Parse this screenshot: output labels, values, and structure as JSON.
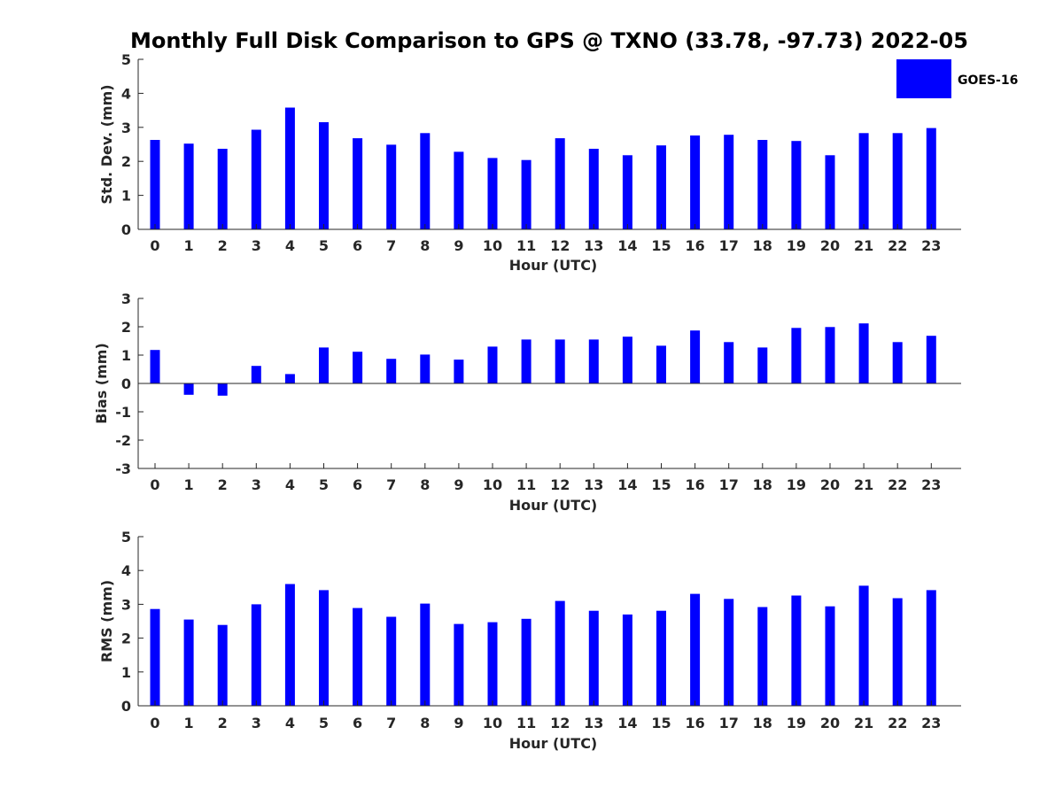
{
  "title": "Monthly Full Disk Comparison to GPS @ TXNO (33.78, -97.73) 2022-05",
  "legend": {
    "label": "GOES-16",
    "color": "#0000ff"
  },
  "chart_data": [
    {
      "type": "bar",
      "series": [
        {
          "name": "GOES-16",
          "values": [
            2.63,
            2.52,
            2.37,
            2.93,
            3.58,
            3.15,
            2.68,
            2.49,
            2.83,
            2.28,
            2.1,
            2.04,
            2.68,
            2.37,
            2.18,
            2.47,
            2.76,
            2.78,
            2.63,
            2.6,
            2.18,
            2.83,
            2.83,
            2.98
          ]
        }
      ],
      "categories": [
        "0",
        "1",
        "2",
        "3",
        "4",
        "5",
        "6",
        "7",
        "8",
        "9",
        "10",
        "11",
        "12",
        "13",
        "14",
        "15",
        "16",
        "17",
        "18",
        "19",
        "20",
        "21",
        "22",
        "23"
      ],
      "xlabel": "Hour (UTC)",
      "ylabel": "Std. Dev. (mm)",
      "ylim": [
        0,
        5
      ],
      "yticks": [
        "0",
        "1",
        "2",
        "3",
        "4",
        "5"
      ],
      "grid": false
    },
    {
      "type": "bar",
      "series": [
        {
          "name": "GOES-16",
          "values": [
            1.18,
            -0.4,
            -0.43,
            0.62,
            0.33,
            1.27,
            1.12,
            0.87,
            1.02,
            0.84,
            1.3,
            1.55,
            1.55,
            1.55,
            1.65,
            1.33,
            1.87,
            1.46,
            1.27,
            1.96,
            1.99,
            2.12,
            1.46,
            1.68
          ]
        }
      ],
      "categories": [
        "0",
        "1",
        "2",
        "3",
        "4",
        "5",
        "6",
        "7",
        "8",
        "9",
        "10",
        "11",
        "12",
        "13",
        "14",
        "15",
        "16",
        "17",
        "18",
        "19",
        "20",
        "21",
        "22",
        "23"
      ],
      "xlabel": "Hour (UTC)",
      "ylabel": "Bias (mm)",
      "ylim": [
        -3,
        3
      ],
      "yticks": [
        "-3",
        "-2",
        "-1",
        "0",
        "1",
        "2",
        "3"
      ],
      "grid": false
    },
    {
      "type": "bar",
      "series": [
        {
          "name": "GOES-16",
          "values": [
            2.86,
            2.55,
            2.39,
            3.0,
            3.6,
            3.42,
            2.89,
            2.63,
            3.02,
            2.42,
            2.47,
            2.57,
            3.1,
            2.81,
            2.7,
            2.81,
            3.31,
            3.16,
            2.92,
            3.26,
            2.94,
            3.55,
            3.18,
            3.42
          ]
        }
      ],
      "categories": [
        "0",
        "1",
        "2",
        "3",
        "4",
        "5",
        "6",
        "7",
        "8",
        "9",
        "10",
        "11",
        "12",
        "13",
        "14",
        "15",
        "16",
        "17",
        "18",
        "19",
        "20",
        "21",
        "22",
        "23"
      ],
      "xlabel": "Hour (UTC)",
      "ylabel": "RMS (mm)",
      "ylim": [
        0,
        5
      ],
      "yticks": [
        "0",
        "1",
        "2",
        "3",
        "4",
        "5"
      ],
      "grid": false
    }
  ]
}
